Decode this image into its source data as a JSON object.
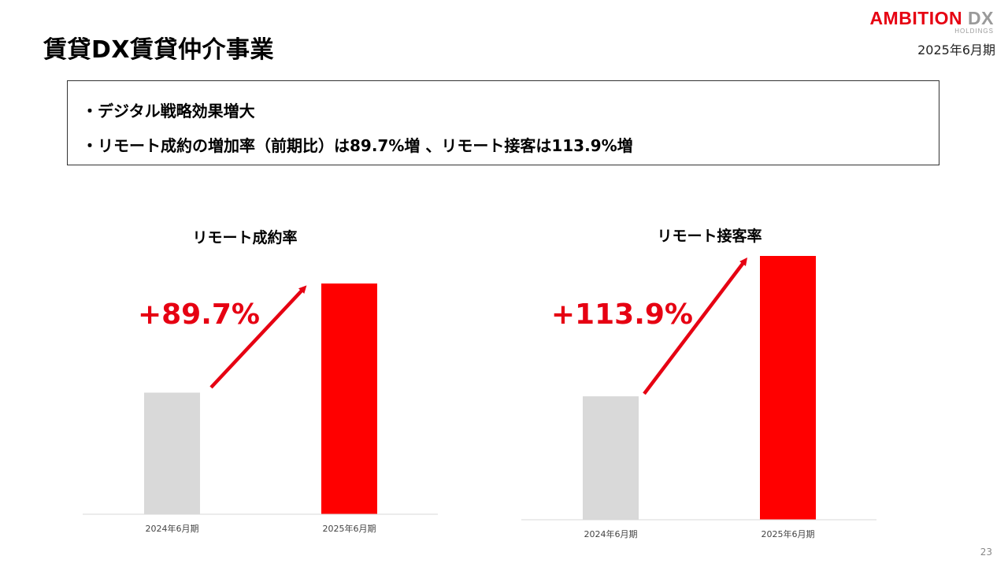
{
  "header": {
    "title": "賃貸DX賃貸仲介事業",
    "logo_main": "AMBITION",
    "logo_dx": "DX",
    "logo_sub": "HOLDINGS",
    "period": "2025年6月期"
  },
  "bullets": [
    "・デジタル戦略効果増大",
    "・リモート成約の増加率（前期比）は89.7%増 、リモート接客は113.9%増"
  ],
  "colors": {
    "accent": "#e60012",
    "bar_prev": "#d9d9d9",
    "bar_curr": "#ff0000"
  },
  "chart_data": [
    {
      "type": "bar",
      "title": "リモート成約率",
      "categories": [
        "2024年6月期",
        "2025年6月期"
      ],
      "values": [
        52.7,
        100
      ],
      "ylim": [
        0,
        100
      ],
      "annotation": "+89.7%",
      "grid": false
    },
    {
      "type": "bar",
      "title": "リモート接客率",
      "categories": [
        "2024年6月期",
        "2025年6月期"
      ],
      "values": [
        46.8,
        100
      ],
      "ylim": [
        0,
        100
      ],
      "annotation": "+113.9%",
      "grid": false
    }
  ],
  "page_number": "23"
}
